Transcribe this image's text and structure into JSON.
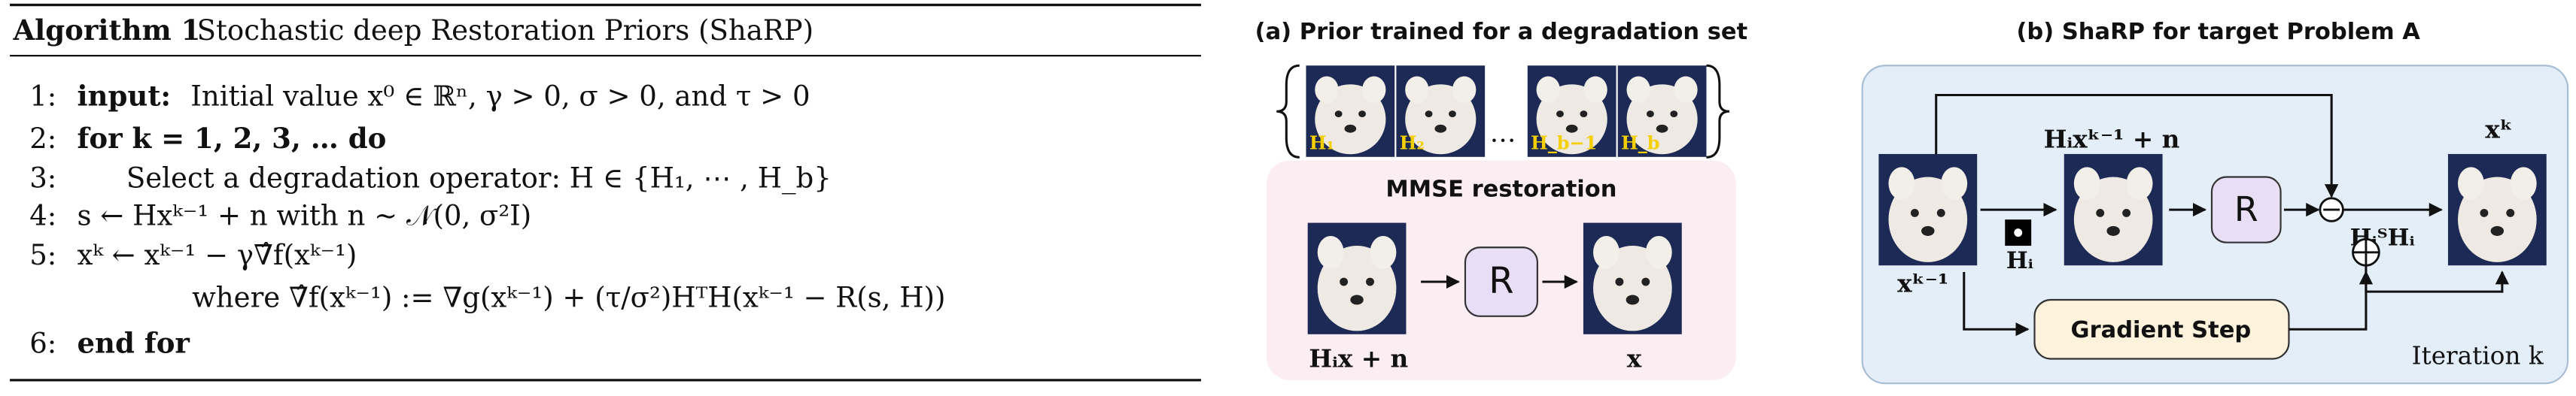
{
  "algorithm": {
    "label": "Algorithm 1",
    "title": "Stochastic deep Restoration Priors (ShaRP)",
    "lines": [
      {
        "number": "1:",
        "keyword": "input:",
        "text": "Initial value x⁰ ∈ ℝⁿ, γ > 0, σ > 0, and τ > 0"
      },
      {
        "number": "2:",
        "keyword": "for k = 1, 2, 3, … do"
      },
      {
        "number": "3:",
        "text": "Select a degradation operator:  H ∈ {H₁, ⋯ , H_b}"
      },
      {
        "number": "4:",
        "text": "s ← Hxᵏ⁻¹ + n with n ∼ 𝒩(0, σ²I)"
      },
      {
        "number": "5:",
        "text": "xᵏ ← xᵏ⁻¹ − γ∇̂f(xᵏ⁻¹)"
      },
      {
        "text": "where ∇̂f(xᵏ⁻¹) := ∇g(xᵏ⁻¹) + (τ/σ²)HᵀH(xᵏ⁻¹ − R(s, H))"
      },
      {
        "number": "6:",
        "keyword": "end for"
      }
    ]
  },
  "panel_a": {
    "title": "(a) Prior trained for a degradation set",
    "image_labels": [
      "H₁",
      "H₂",
      "H_b−1",
      "H_b"
    ],
    "ellipsis": "…",
    "box_title": "MMSE restoration",
    "restorer": "R",
    "input_label": "Hᵢx + n",
    "output_label": "x"
  },
  "panel_b": {
    "title": "(b) ShaRP for target Problem A",
    "measurement_label": "Hᵢxᵏ⁻¹ + n",
    "restorer": "R",
    "operator_label": "HᵢᵀHᵢ",
    "output_label": "xᵏ",
    "input_label": "xᵏ⁻¹",
    "blur_label": "Hᵢ",
    "gradient_step": "Gradient Step",
    "iteration": "Iteration k"
  }
}
